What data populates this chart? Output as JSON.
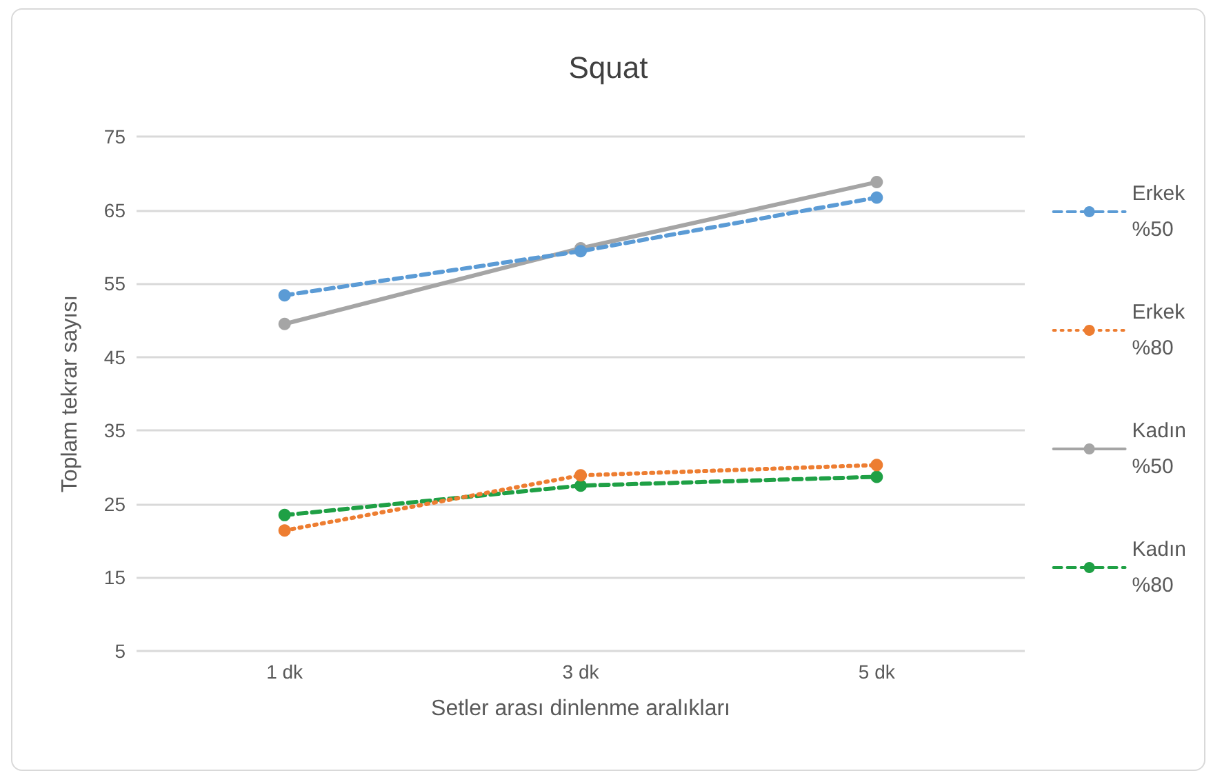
{
  "chart_data": {
    "type": "line",
    "title": "Squat",
    "xlabel": "Setler arası dinlenme aralıkları",
    "ylabel": "Toplam tekrar sayısı",
    "categories": [
      "1 dk",
      "3 dk",
      "5 dk"
    ],
    "series": [
      {
        "name": "Erkek %50",
        "color": "#5b9bd5",
        "line_style": "dashed",
        "values": [
          53.4,
          59.4,
          66.7
        ]
      },
      {
        "name": "Erkek %80",
        "color": "#ed7d31",
        "line_style": "dotted",
        "values": [
          21.4,
          28.9,
          30.3
        ]
      },
      {
        "name": "Kadın %50",
        "color": "#a5a5a5",
        "line_style": "solid",
        "values": [
          49.5,
          59.8,
          68.8
        ]
      },
      {
        "name": "Kadın %80",
        "color": "#1fa045",
        "line_style": "dashed",
        "values": [
          23.5,
          27.5,
          28.7
        ]
      }
    ],
    "ylim": [
      5,
      75
    ],
    "yticks": [
      5,
      15,
      25,
      35,
      45,
      55,
      65,
      75
    ],
    "grid": "y",
    "legend": "right",
    "marker": "circle"
  }
}
